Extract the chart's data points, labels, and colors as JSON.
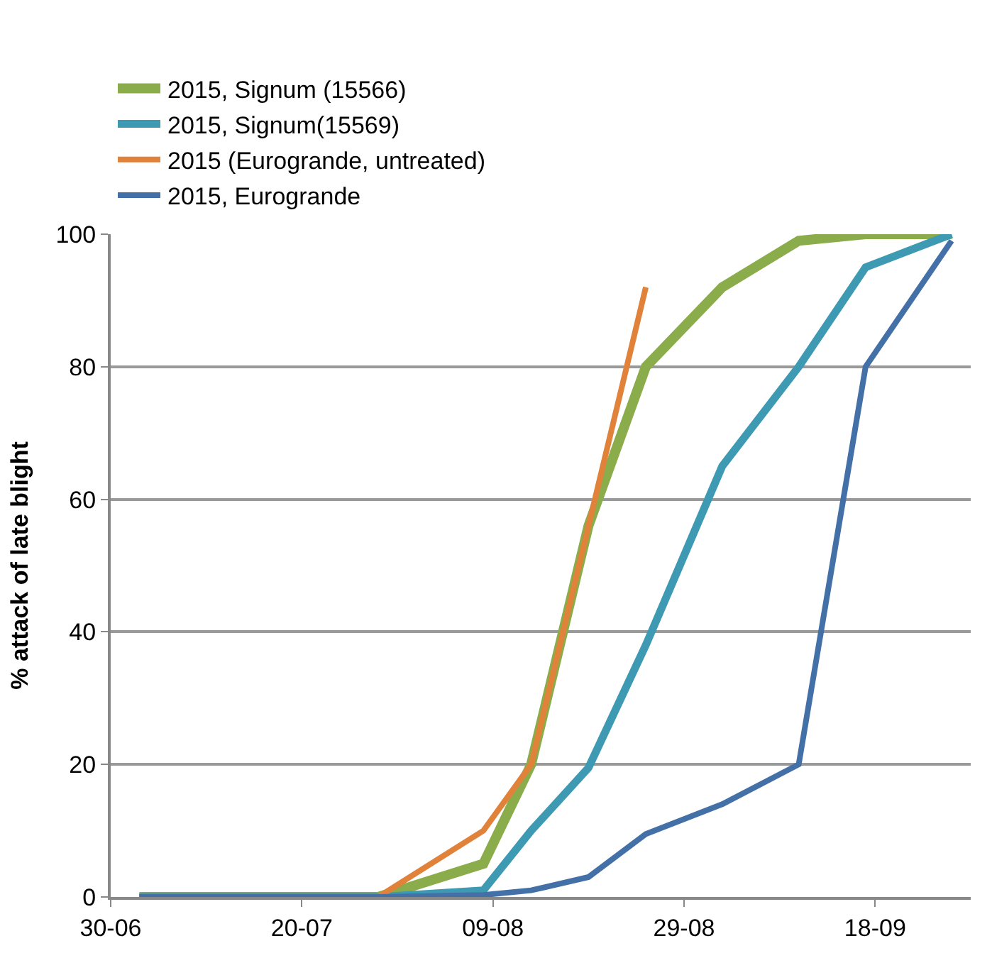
{
  "chart_data": {
    "type": "line",
    "ylabel": "% attack of late blight",
    "x": [
      "2015-07-03",
      "2015-07-28",
      "2015-08-08",
      "2015-08-13",
      "2015-08-19",
      "2015-08-25",
      "2015-09-02",
      "2015-09-10",
      "2015-09-17",
      "2015-09-26"
    ],
    "series": [
      {
        "name": "2015, Signum (15566)",
        "color": "#8aac4a",
        "values": [
          0,
          0,
          5,
          20,
          56,
          80,
          92,
          99,
          100,
          100
        ]
      },
      {
        "name": "2015, Signum(15569)",
        "color": "#3e9ab2",
        "values": [
          0,
          0,
          1,
          10,
          19.5,
          38,
          65,
          80,
          95,
          100
        ]
      },
      {
        "name": "2015 (Eurogrande, untreated)",
        "color": "#e0823a",
        "values": [
          0,
          0,
          10,
          20,
          56,
          92,
          null,
          null,
          null,
          null
        ]
      },
      {
        "name": "2015, Eurogrande",
        "color": "#4470a8",
        "values": [
          0,
          0,
          0.3,
          1,
          3,
          9.5,
          14,
          20,
          80,
          99
        ]
      }
    ],
    "xlim": [
      "2015-06-30",
      "2015-09-28"
    ],
    "xticks": [
      {
        "value": "2015-06-30",
        "label": "30-06"
      },
      {
        "value": "2015-07-20",
        "label": "20-07"
      },
      {
        "value": "2015-08-09",
        "label": "09-08"
      },
      {
        "value": "2015-08-29",
        "label": "29-08"
      },
      {
        "value": "2015-09-18",
        "label": "18-09"
      }
    ],
    "ylim": [
      0,
      100
    ],
    "yticks": [
      0,
      20,
      40,
      60,
      80,
      100
    ],
    "grid": "y",
    "legend": "top",
    "marker": "none",
    "line_style": "solid"
  }
}
